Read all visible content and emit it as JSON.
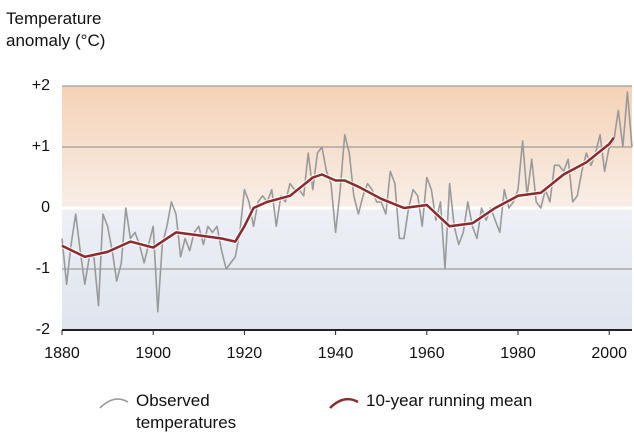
{
  "chart_data": {
    "type": "line",
    "y_label": "Temperature anomaly (°C)",
    "xlim": [
      1880,
      2005
    ],
    "xticks": [
      1880,
      1900,
      1920,
      1940,
      1960,
      1980,
      2000
    ],
    "ylim": [
      -2,
      2
    ],
    "yticks": [
      {
        "value": 2,
        "label": "+2"
      },
      {
        "value": 1,
        "label": "+1"
      },
      0,
      -1,
      -2
    ],
    "grid": true,
    "series": [
      {
        "name": "Observed temperatures",
        "color": "#9a9a9a",
        "x": [
          1880,
          1881,
          1882,
          1883,
          1884,
          1885,
          1886,
          1887,
          1888,
          1889,
          1890,
          1891,
          1892,
          1893,
          1894,
          1895,
          1896,
          1897,
          1898,
          1899,
          1900,
          1901,
          1902,
          1903,
          1904,
          1905,
          1906,
          1907,
          1908,
          1909,
          1910,
          1911,
          1912,
          1913,
          1914,
          1915,
          1916,
          1917,
          1918,
          1919,
          1920,
          1921,
          1922,
          1923,
          1924,
          1925,
          1926,
          1927,
          1928,
          1929,
          1930,
          1931,
          1932,
          1933,
          1934,
          1935,
          1936,
          1937,
          1938,
          1939,
          1940,
          1941,
          1942,
          1943,
          1944,
          1945,
          1946,
          1947,
          1948,
          1949,
          1950,
          1951,
          1952,
          1953,
          1954,
          1955,
          1956,
          1957,
          1958,
          1959,
          1960,
          1961,
          1962,
          1963,
          1964,
          1965,
          1966,
          1967,
          1968,
          1969,
          1970,
          1971,
          1972,
          1973,
          1974,
          1975,
          1976,
          1977,
          1978,
          1979,
          1980,
          1981,
          1982,
          1983,
          1984,
          1985,
          1986,
          1987,
          1988,
          1989,
          1990,
          1991,
          1992,
          1993,
          1994,
          1995,
          1996,
          1997,
          1998,
          1999,
          2000,
          2001,
          2002,
          2003,
          2004,
          2005
        ],
        "values": [
          -0.5,
          -1.25,
          -0.6,
          -0.1,
          -0.7,
          -1.25,
          -0.8,
          -0.8,
          -1.6,
          -0.1,
          -0.3,
          -0.7,
          -1.2,
          -0.9,
          0.0,
          -0.5,
          -0.4,
          -0.6,
          -0.9,
          -0.6,
          -0.3,
          -1.7,
          -0.6,
          -0.3,
          0.1,
          -0.1,
          -0.8,
          -0.5,
          -0.7,
          -0.4,
          -0.3,
          -0.6,
          -0.3,
          -0.4,
          -0.3,
          -0.7,
          -1.0,
          -0.9,
          -0.8,
          -0.4,
          0.3,
          0.1,
          -0.3,
          0.1,
          0.2,
          0.1,
          0.3,
          -0.3,
          0.2,
          0.1,
          0.4,
          0.3,
          0.3,
          0.2,
          0.9,
          0.3,
          0.9,
          1.0,
          0.6,
          0.4,
          -0.4,
          0.3,
          1.2,
          0.9,
          0.2,
          -0.1,
          0.2,
          0.4,
          0.3,
          0.1,
          0.1,
          -0.1,
          0.6,
          0.4,
          -0.5,
          -0.5,
          0.0,
          0.3,
          0.2,
          -0.3,
          0.5,
          0.3,
          -0.2,
          0.1,
          -1.0,
          0.4,
          -0.3,
          -0.6,
          -0.4,
          0.1,
          -0.3,
          -0.5,
          0.0,
          -0.2,
          0.0,
          -0.2,
          -0.4,
          0.3,
          0.0,
          0.1,
          0.3,
          1.1,
          0.2,
          0.8,
          0.1,
          0.0,
          0.3,
          0.1,
          0.7,
          0.7,
          0.6,
          0.8,
          0.1,
          0.2,
          0.6,
          0.9,
          0.7,
          0.9,
          1.2,
          0.6,
          1.0,
          1.1,
          1.6,
          1.0,
          1.9,
          1.0
        ]
      },
      {
        "name": "10-year running mean",
        "color": "#8b2b2e",
        "x": [
          1880,
          1885,
          1890,
          1895,
          1900,
          1905,
          1910,
          1915,
          1918,
          1920,
          1922,
          1925,
          1930,
          1935,
          1937,
          1940,
          1942,
          1945,
          1950,
          1955,
          1960,
          1965,
          1970,
          1975,
          1980,
          1985,
          1990,
          1995,
          2000,
          2001
        ],
        "values": [
          -0.62,
          -0.8,
          -0.72,
          -0.55,
          -0.65,
          -0.4,
          -0.45,
          -0.5,
          -0.55,
          -0.3,
          0.0,
          0.1,
          0.2,
          0.5,
          0.55,
          0.45,
          0.45,
          0.35,
          0.15,
          0.0,
          0.05,
          -0.3,
          -0.25,
          0.0,
          0.2,
          0.25,
          0.55,
          0.75,
          1.05,
          1.15
        ]
      }
    ]
  }
}
